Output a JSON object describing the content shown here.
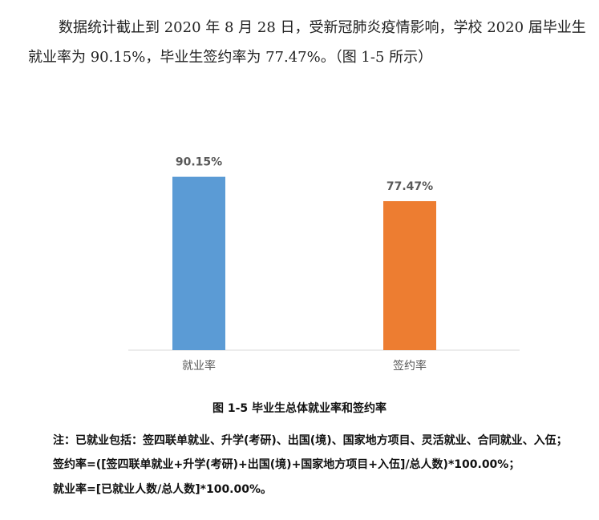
{
  "intro": {
    "paragraph": "数据统计截止到 2020 年 8 月 28 日，受新冠肺炎疫情影响，学校 2020 届毕业生就业率为 90.15%，毕业生签约率为 77.47%。（图 1-5 所示）"
  },
  "chart_data": {
    "type": "bar",
    "title": "图 1-5 毕业生总体就业率和签约率",
    "categories": [
      "就业率",
      "签约率"
    ],
    "values": [
      90.15,
      77.47
    ],
    "data_labels": [
      "90.15%",
      "77.47%"
    ],
    "colors": [
      "#5B9BD5",
      "#ED7D31"
    ],
    "ylim": [
      0,
      100
    ],
    "grid": false,
    "legend": "none",
    "xlabel": "",
    "ylabel": ""
  },
  "notes": {
    "note1": "注：已就业包括：签四联单就业、升学(考研)、出国(境)、国家地方项目、灵活就业、合同就业、入伍；",
    "note2": "签约率=([签四联单就业+升学(考研)+出国(境)+国家地方项目+入伍]/总人数)*100.00%；",
    "note3": "就业率=[已就业人数/总人数]*100.00%。"
  }
}
